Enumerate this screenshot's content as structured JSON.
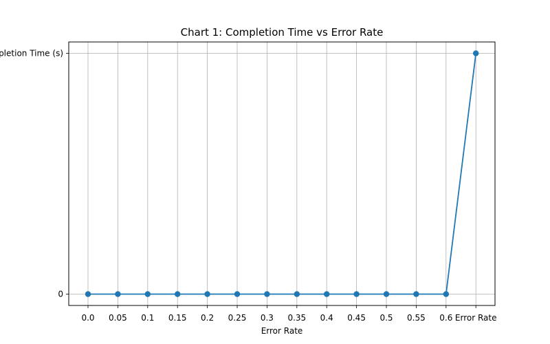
{
  "chart_data": {
    "type": "line",
    "title": "Chart 1: Completion Time vs Error Rate",
    "xlabel": "Error Rate",
    "ylabel": "",
    "categories": [
      "0.0",
      "0.05",
      "0.1",
      "0.15",
      "0.2",
      "0.25",
      "0.3",
      "0.35",
      "0.4",
      "0.45",
      "0.5",
      "0.55",
      "0.6",
      "Error Rate"
    ],
    "y_tick_labels": [
      "0",
      "Completion Time (s)"
    ],
    "series": [
      {
        "color": "#1f77b4",
        "values": [
          "0",
          "0",
          "0",
          "0",
          "0",
          "0",
          "0",
          "0",
          "0",
          "0",
          "0",
          "0",
          "0",
          "Completion Time (s)"
        ]
      }
    ],
    "grid": true,
    "legend": "none"
  }
}
